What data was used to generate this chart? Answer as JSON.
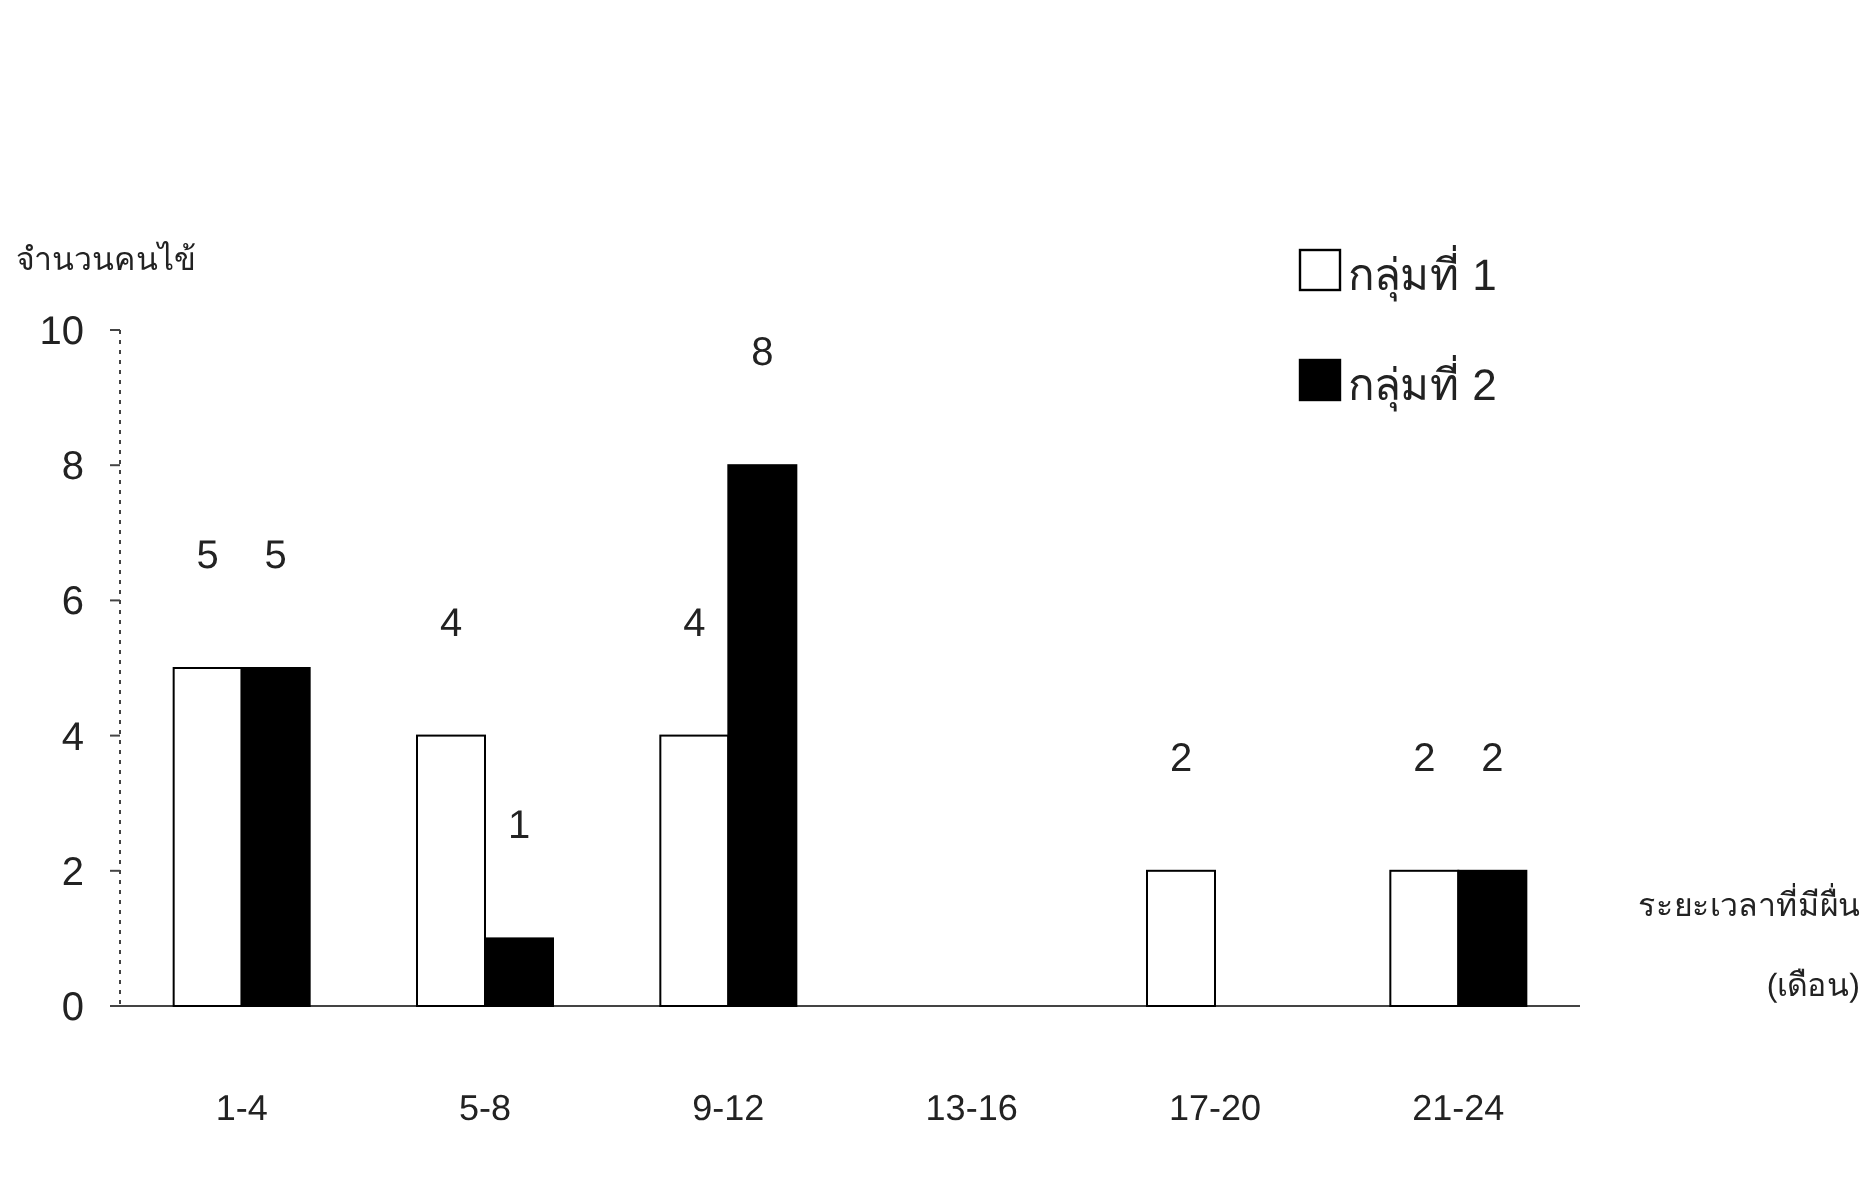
{
  "chart_data": {
    "type": "bar",
    "ylabel": "จำนวนคนไข้",
    "xlabel": "ระยะเวลาที่มีผื่น\n(เดือน)",
    "categories": [
      "1-4",
      "5-8",
      "9-12",
      "13-16",
      "17-20",
      "21-24"
    ],
    "series": [
      {
        "name": "กลุ่มที่ 1",
        "color": "#ffffff",
        "values": [
          5,
          4,
          4,
          0,
          2,
          2
        ],
        "value_labels": [
          "5",
          "4",
          "4",
          null,
          "2",
          "2"
        ]
      },
      {
        "name": "กลุ่มที่ 2",
        "color": "#000000",
        "values": [
          5,
          1,
          8,
          0,
          0,
          2
        ],
        "value_labels": [
          "5",
          "1",
          "8",
          null,
          null,
          "2"
        ]
      }
    ],
    "ylim": [
      0,
      10
    ],
    "yticks": [
      0,
      2,
      4,
      6,
      8,
      10
    ],
    "legend": "top right"
  }
}
